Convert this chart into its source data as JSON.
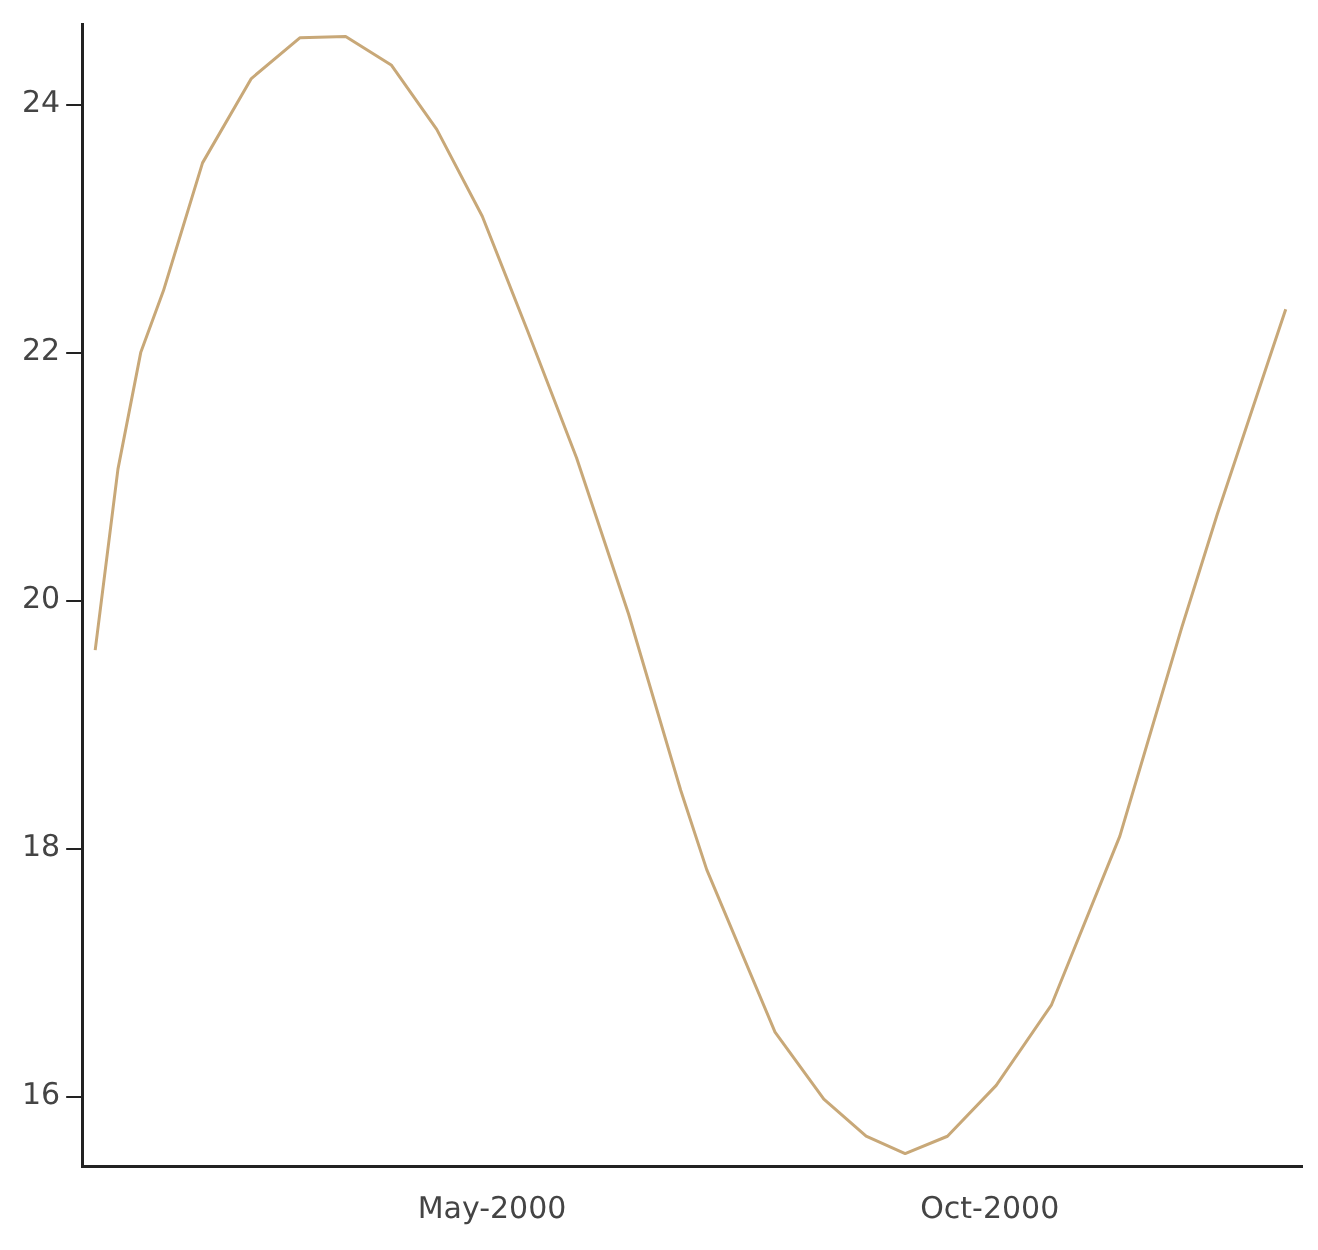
{
  "chart_data": {
    "type": "line",
    "x": [
      "1999-12-31",
      "2000-01-07",
      "2000-01-14",
      "2000-01-21",
      "2000-02-02",
      "2000-02-17",
      "2000-03-03",
      "2000-03-17",
      "2000-03-31",
      "2000-04-14",
      "2000-04-28",
      "2000-05-12",
      "2000-05-27",
      "2000-06-12",
      "2000-06-28",
      "2000-07-06",
      "2000-07-27",
      "2000-08-11",
      "2000-08-24",
      "2000-09-05",
      "2000-09-18",
      "2000-10-03",
      "2000-10-20",
      "2000-11-10",
      "2000-11-29",
      "2000-12-10",
      "2000-12-31"
    ],
    "series": [
      {
        "color": "#c8a878",
        "values": [
          19.6,
          21.06,
          22.0,
          22.5,
          23.53,
          24.21,
          24.54,
          24.55,
          24.32,
          23.8,
          23.1,
          22.17,
          21.15,
          19.89,
          18.47,
          17.83,
          16.52,
          15.98,
          15.68,
          15.54,
          15.68,
          16.09,
          16.74,
          18.1,
          19.78,
          20.7,
          22.35
        ]
      }
    ],
    "xlim": [
      "1999-12-27",
      "2001-01-05"
    ],
    "xticks": [
      {
        "value": "2000-05-01",
        "label": "May-2000"
      },
      {
        "value": "2000-10-01",
        "label": "Oct-2000"
      }
    ],
    "ylim": [
      15.44,
      24.65
    ],
    "yticks": [
      16,
      18,
      20,
      22,
      24
    ],
    "grid": false,
    "legend": false,
    "marker": "none",
    "line_style": "solid"
  }
}
